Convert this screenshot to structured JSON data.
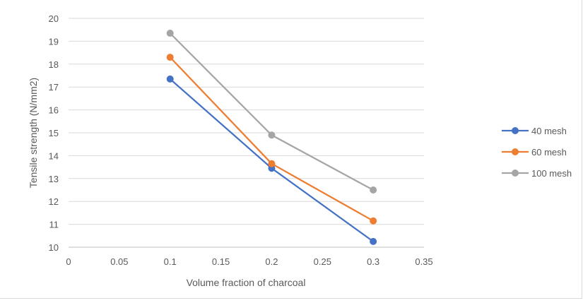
{
  "chart_data": {
    "type": "line",
    "title": "",
    "xlabel": "Volume fraction of charcoal",
    "ylabel": "Tensile strength  (N/mm2)",
    "xlim": [
      0,
      0.35
    ],
    "ylim": [
      10,
      20
    ],
    "x_ticks": [
      "0",
      "0.05",
      "0.1",
      "0.15",
      "0.2",
      "0.25",
      "0.3",
      "0.35"
    ],
    "y_ticks": [
      "10",
      "11",
      "12",
      "13",
      "14",
      "15",
      "16",
      "17",
      "18",
      "19",
      "20"
    ],
    "grid": true,
    "legend_position": "right",
    "x": [
      0.1,
      0.2,
      0.3
    ],
    "series": [
      {
        "name": "40 mesh",
        "color": "#4472c4",
        "values": [
          17.35,
          13.45,
          10.25
        ]
      },
      {
        "name": "60 mesh",
        "color": "#ed7d31",
        "values": [
          18.3,
          13.65,
          11.15
        ]
      },
      {
        "name": "100 mesh",
        "color": "#a5a5a5",
        "values": [
          19.35,
          14.9,
          12.5
        ]
      }
    ]
  }
}
